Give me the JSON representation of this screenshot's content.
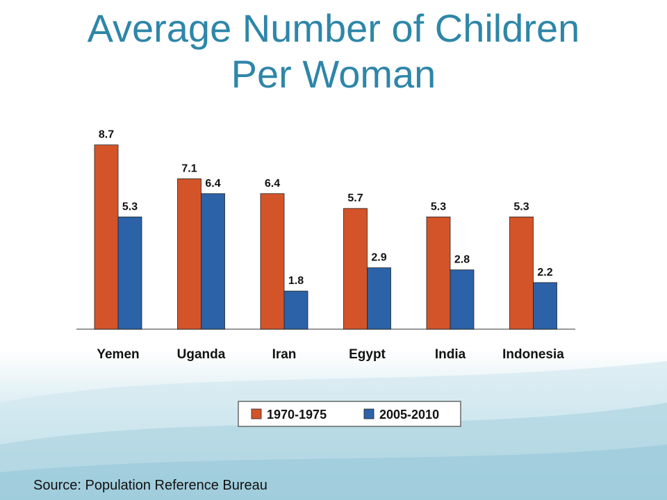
{
  "title_line1": "Average Number of Children",
  "title_line2": "Per Woman",
  "source": "Source: Population Reference Bureau",
  "colors": {
    "series1": "#d4542a",
    "series2": "#2b62a8",
    "title": "#2e86a8"
  },
  "chart_data": {
    "type": "bar",
    "categories": [
      "Yemen",
      "Uganda",
      "Iran",
      "Egypt",
      "India",
      "Indonesia"
    ],
    "series": [
      {
        "name": "1970-1975",
        "values": [
          8.7,
          7.1,
          6.4,
          5.7,
          5.3,
          5.3
        ]
      },
      {
        "name": "2005-2010",
        "values": [
          5.3,
          6.4,
          1.8,
          2.9,
          2.8,
          2.2
        ]
      }
    ],
    "ylim": [
      0,
      10
    ],
    "grid": false,
    "legend": "bottom-center"
  }
}
